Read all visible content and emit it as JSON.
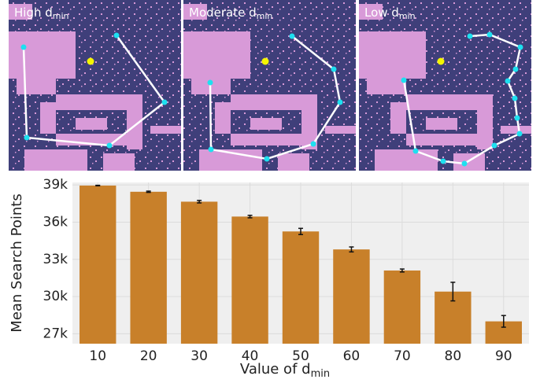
{
  "panels": [
    {
      "title": [
        "High d",
        "min"
      ]
    },
    {
      "title": [
        "Moderate d",
        "min"
      ]
    },
    {
      "title": [
        "Low d",
        "min"
      ]
    }
  ],
  "chart_data": {
    "type": "bar",
    "categories": [
      "10",
      "20",
      "30",
      "40",
      "50",
      "60",
      "70",
      "80",
      "90"
    ],
    "values": [
      38950,
      38450,
      37650,
      36450,
      35250,
      33800,
      32100,
      30400,
      28000
    ],
    "errors": [
      20,
      50,
      100,
      100,
      250,
      200,
      120,
      750,
      470
    ],
    "color": "#c8802a",
    "ylabel": "Mean Search Points",
    "xlabel": [
      "Value of d",
      "min"
    ],
    "ylim": [
      26200,
      39200
    ],
    "yticks": [
      {
        "value": 27000,
        "label": "27k"
      },
      {
        "value": 30000,
        "label": "30k"
      },
      {
        "value": 33000,
        "label": "33k"
      },
      {
        "value": 36000,
        "label": "36k"
      },
      {
        "value": 39000,
        "label": "39k"
      }
    ],
    "grid": true
  }
}
